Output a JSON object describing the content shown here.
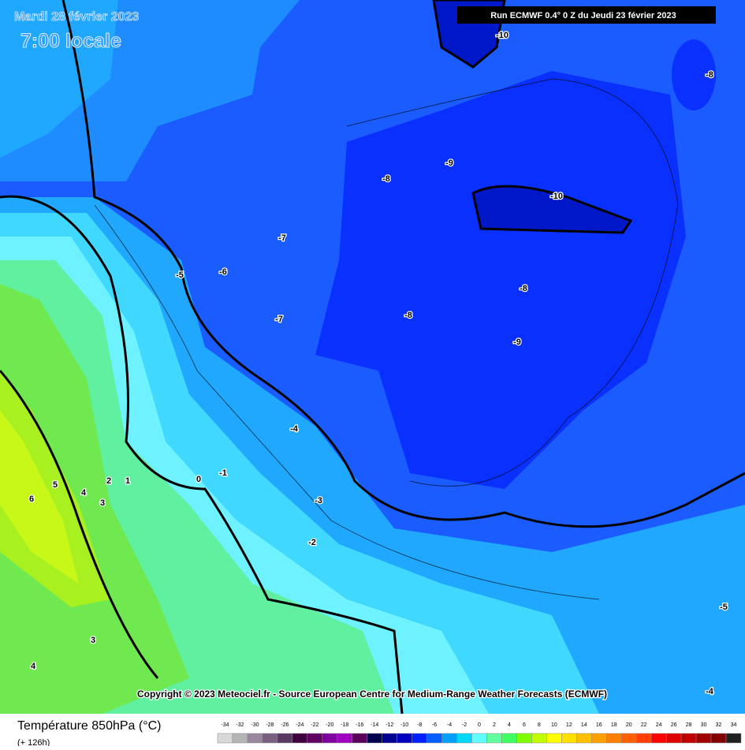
{
  "header": {
    "date": "Mardi 28 février 2023",
    "time": "7:00 locale",
    "run": "Run ECMWF 0.4° 0 Z du Jeudi 23 février 2023"
  },
  "copyright": "Copyright © 2023 Meteociel.fr - Source European Centre for Medium-Range Weather Forecasts (ECMWF)",
  "contour_labels": [
    "-10",
    "-8",
    "-9",
    "-8",
    "-10",
    "-7",
    "-6",
    "-5",
    "-8",
    "-8",
    "-7",
    "-9",
    "-4",
    "-1",
    "0",
    "2",
    "1",
    "5",
    "4",
    "6",
    "3",
    "-3",
    "-2",
    "3",
    "4",
    "-5",
    "-4"
  ],
  "legend": {
    "title": "Température 850hPa (°C)",
    "subtitle": "(+ 126h)",
    "ticks": [
      -34,
      -32,
      -30,
      -28,
      -26,
      -24,
      -22,
      -20,
      -18,
      -16,
      -14,
      -12,
      -10,
      -8,
      -6,
      -4,
      -2,
      0,
      2,
      4,
      6,
      8,
      10,
      12,
      14,
      16,
      18,
      20,
      22,
      24,
      26,
      28,
      30,
      32,
      34
    ],
    "colors": [
      "#d8d8d8",
      "#b4b4b4",
      "#9a88a0",
      "#7a6080",
      "#5a3a60",
      "#400040",
      "#600060",
      "#8000a0",
      "#a000c0",
      "#5a005a",
      "#000050",
      "#000090",
      "#0000c0",
      "#0020ff",
      "#0060ff",
      "#00a0ff",
      "#00d8ff",
      "#60ffff",
      "#60ffa0",
      "#40ff60",
      "#80ff00",
      "#c0ff00",
      "#ffff00",
      "#ffe000",
      "#ffc000",
      "#ffa000",
      "#ff8000",
      "#ff6000",
      "#ff4000",
      "#ff0000",
      "#e00000",
      "#c00000",
      "#a00000",
      "#800000",
      "#202020"
    ]
  }
}
